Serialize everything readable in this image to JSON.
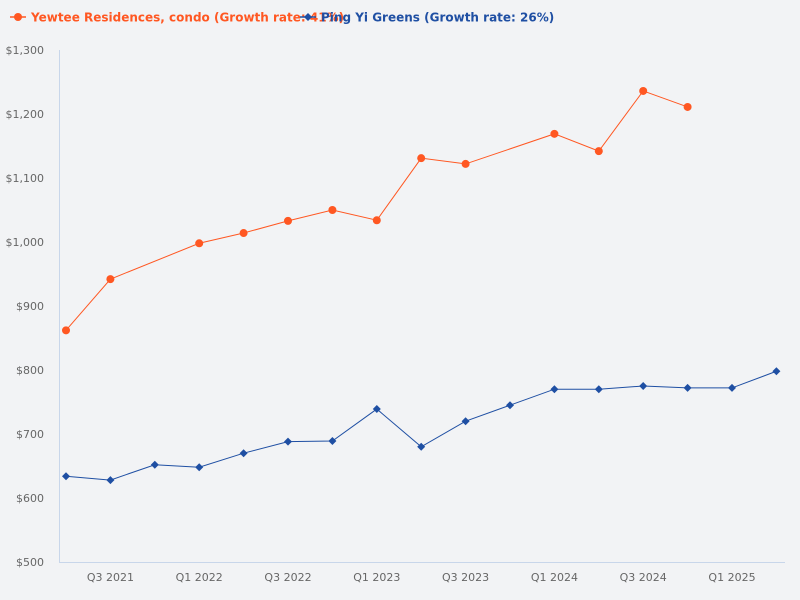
{
  "chart_data": {
    "type": "line",
    "title": "",
    "xlabel": "",
    "ylabel": "",
    "ylim": [
      500,
      1300
    ],
    "yticks": [
      "$500",
      "$600",
      "$700",
      "$800",
      "$900",
      "$1,000",
      "$1,100",
      "$1,200",
      "$1,300"
    ],
    "ytick_values": [
      500,
      600,
      700,
      800,
      900,
      1000,
      1100,
      1200,
      1300
    ],
    "x": [
      "Q2 2021",
      "Q3 2021",
      "Q4 2021",
      "Q1 2022",
      "Q2 2022",
      "Q3 2022",
      "Q4 2022",
      "Q1 2023",
      "Q2 2023",
      "Q3 2023",
      "Q4 2023",
      "Q1 2024",
      "Q2 2024",
      "Q3 2024",
      "Q4 2024",
      "Q1 2025",
      "Q2 2025"
    ],
    "xtick_labels": [
      "Q3 2021",
      "Q1 2022",
      "Q3 2022",
      "Q1 2023",
      "Q3 2023",
      "Q1 2024",
      "Q3 2024",
      "Q1 2025"
    ],
    "grid": false,
    "legend_position": "top-left",
    "series": [
      {
        "name": "Yewtee Residences, condo (Growth rate: 41%)",
        "color": "#ff5722",
        "marker": "circle",
        "values": [
          862,
          942,
          null,
          998,
          1014,
          1033,
          1050,
          1034,
          1131,
          1122,
          null,
          1169,
          1142,
          1236,
          1211,
          null,
          null
        ]
      },
      {
        "name": "Ping Yi Greens (Growth rate: 26%)",
        "color": "#1f4fa3",
        "marker": "diamond",
        "values": [
          634,
          628,
          652,
          648,
          670,
          688,
          689,
          739,
          680,
          720,
          745,
          770,
          770,
          775,
          772,
          772,
          798
        ]
      }
    ]
  }
}
